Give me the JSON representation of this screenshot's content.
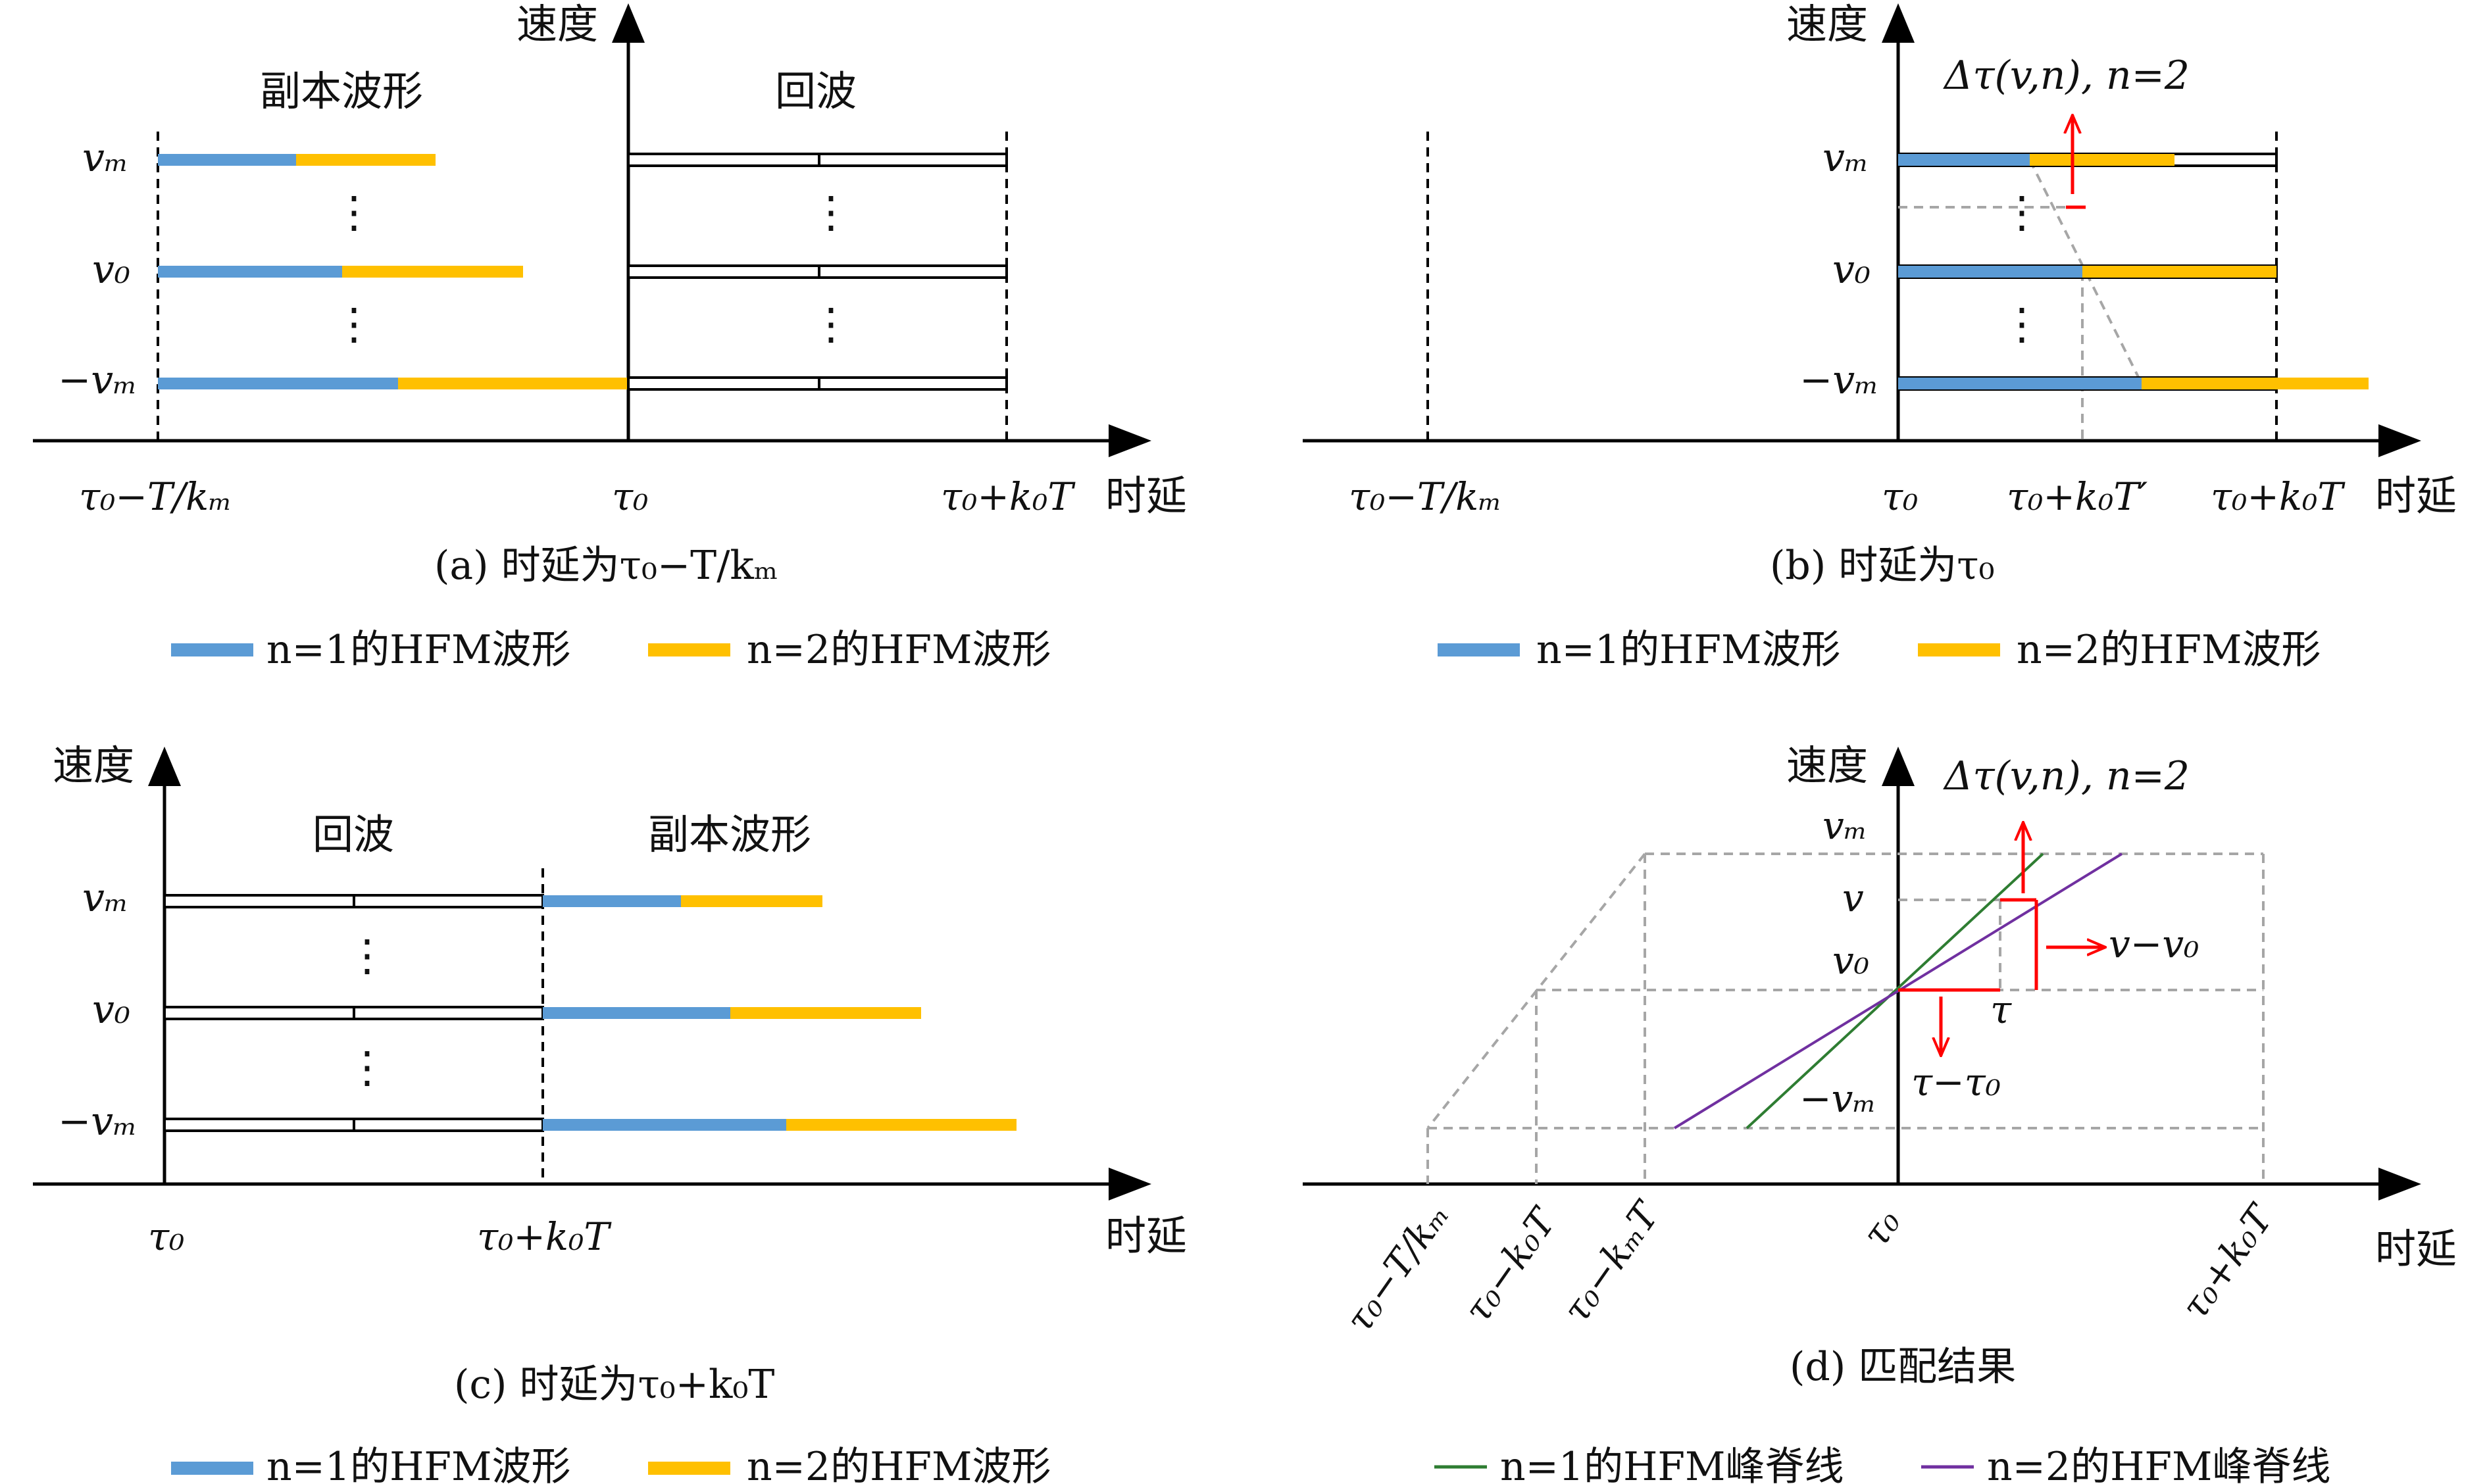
{
  "colors": {
    "n1_wave": "#5b9bd5",
    "n2_wave": "#ffc000",
    "axis": "#000000",
    "dashed_gray": "#a6a6a6",
    "red": "#ff0000",
    "n1_ridge": "#2e7d32",
    "n2_ridge": "#7030a0"
  },
  "common": {
    "velocity_axis": "速度",
    "delay_axis": "时延",
    "v_m": "vₘ",
    "v_0": "v₀",
    "neg_v_m": "−vₘ",
    "dots": "⋮"
  },
  "panel_a": {
    "left_title": "副本波形",
    "right_title": "回波",
    "ticks": [
      "τ₀−T/kₘ",
      "τ₀",
      "τ₀+k₀T"
    ],
    "caption": "(a) 时延为τ₀−T/kₘ"
  },
  "panel_b": {
    "annotation": "Δτ(v,n), n=2",
    "ticks": [
      "τ₀−T/kₘ",
      "τ₀",
      "τ₀+k₀T′",
      "τ₀+k₀T"
    ],
    "caption": "(b) 时延为τ₀"
  },
  "panel_c": {
    "left_title": "回波",
    "right_title": "副本波形",
    "ticks": [
      "τ₀",
      "τ₀+k₀T"
    ],
    "caption": "(c) 时延为τ₀+k₀T"
  },
  "panel_d": {
    "annotation": "Δτ(v,n), n=2",
    "v_label": "v",
    "v_minus_v0": "v−v₀",
    "tau_label": "τ",
    "tau_minus_tau0": "τ−τ₀",
    "ticks": [
      "τ₀−T/kₘ",
      "τ₀−k₀T",
      "τ₀−kₘT",
      "τ₀",
      "τ₀+k₀T"
    ],
    "caption": "(d) 匹配结果"
  },
  "legends": {
    "wave_n1": "n=1的HFM波形",
    "wave_n2": "n=2的HFM波形",
    "ridge_n1": "n=1的HFM峰脊线",
    "ridge_n2": "n=2的HFM峰脊线"
  }
}
